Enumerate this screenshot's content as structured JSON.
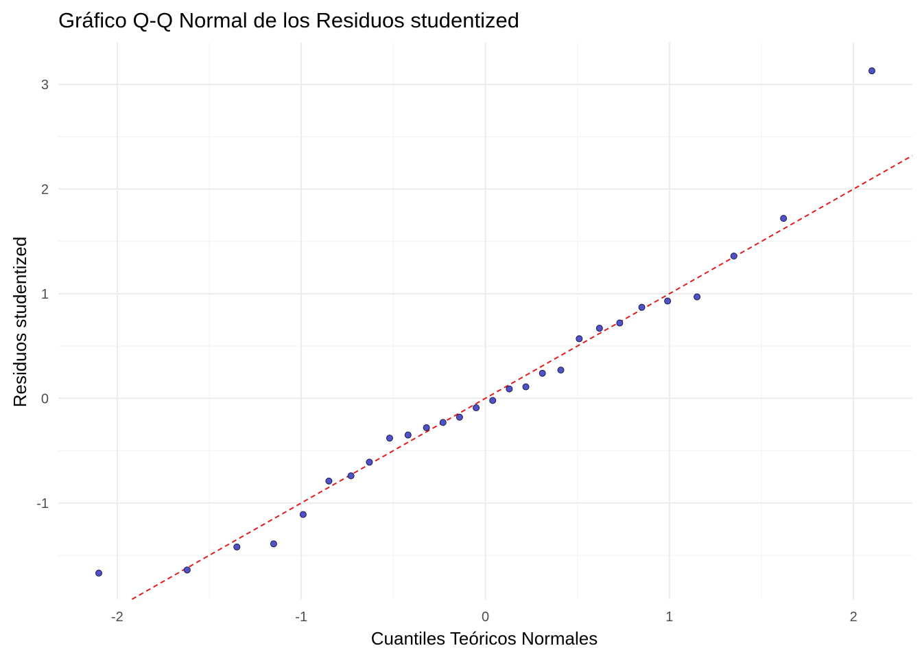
{
  "chart_data": {
    "type": "scatter",
    "title": "Gráfico Q-Q Normal de los Residuos studentized",
    "xlabel": "Cuantiles Teóricos Normales",
    "ylabel": "Residuos studentized",
    "xlim": [
      -2.32,
      2.32
    ],
    "ylim": [
      -1.92,
      3.4
    ],
    "x_ticks": [
      -2,
      -1,
      0,
      1,
      2
    ],
    "x_tick_labels": [
      "-2",
      "-1",
      "0",
      "1",
      "2"
    ],
    "y_ticks": [
      -1,
      0,
      1,
      2,
      3
    ],
    "y_tick_labels": [
      "-1",
      "0",
      "1",
      "2",
      "3"
    ],
    "grid": true,
    "legend": "none",
    "colors": {
      "point_fill": "#5151c8",
      "point_stroke": "#1a1a4d",
      "reference_line": "#e41a1c"
    },
    "points": {
      "x": [
        -2.1,
        -1.62,
        -1.35,
        -1.15,
        -0.99,
        -0.85,
        -0.73,
        -0.63,
        -0.52,
        -0.42,
        -0.32,
        -0.23,
        -0.14,
        -0.05,
        0.04,
        0.13,
        0.22,
        0.31,
        0.41,
        0.51,
        0.62,
        0.73,
        0.85,
        0.99,
        1.15,
        1.35,
        1.62,
        2.1
      ],
      "y": [
        -1.67,
        -1.64,
        -1.42,
        -1.39,
        -1.11,
        -0.79,
        -0.74,
        -0.61,
        -0.38,
        -0.35,
        -0.28,
        -0.23,
        -0.18,
        -0.09,
        -0.02,
        0.09,
        0.11,
        0.24,
        0.27,
        0.57,
        0.67,
        0.72,
        0.87,
        0.93,
        0.97,
        1.36,
        1.72,
        3.13
      ]
    },
    "reference_line": {
      "style": "dashed",
      "intercept": 0.0,
      "slope": 1.0
    }
  }
}
